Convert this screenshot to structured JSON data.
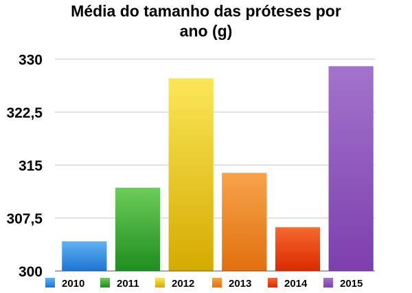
{
  "chart_data": {
    "type": "bar",
    "title": "Média do tamanho das próteses por ano (g)",
    "title_lines": [
      "Média do tamanho das próteses por",
      "ano (g)"
    ],
    "categories": [
      "2010",
      "2011",
      "2012",
      "2013",
      "2014",
      "2015"
    ],
    "values": [
      304.2,
      311.8,
      327.3,
      313.9,
      306.2,
      329.0
    ],
    "ylim": [
      300,
      330
    ],
    "yticks": [
      300,
      307.5,
      315,
      322.5,
      330
    ],
    "ytick_labels": [
      "300",
      "307,5",
      "315",
      "322,5",
      "330"
    ],
    "grid": true,
    "legend_position": "bottom",
    "colors": [
      {
        "light": "#5fb2f2",
        "dark": "#1d74d2"
      },
      {
        "light": "#6ccd58",
        "dark": "#1f8c1f"
      },
      {
        "light": "#fbe658",
        "dark": "#d4aa00"
      },
      {
        "light": "#f7a24c",
        "dark": "#e0700c"
      },
      {
        "light": "#f7682f",
        "dark": "#d92a00"
      },
      {
        "light": "#a273cc",
        "dark": "#7e3fad"
      }
    ]
  }
}
